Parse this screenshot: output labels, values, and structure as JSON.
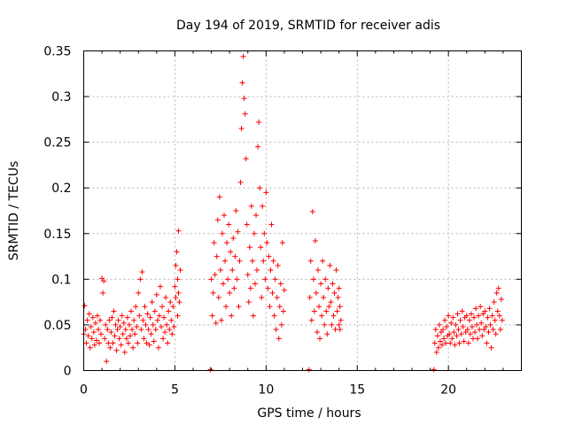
{
  "chart_data": {
    "type": "scatter",
    "title": "Day 194 of 2019, SRMTID for receiver adis",
    "xlabel": "GPS time / hours",
    "ylabel": "SRMTID / TECUs",
    "xlim": [
      0,
      24
    ],
    "ylim": [
      0,
      0.35
    ],
    "x_ticks": [
      0,
      5,
      10,
      15,
      20
    ],
    "x_tick_labels": [
      "0",
      "5",
      "10",
      "15",
      "20"
    ],
    "y_ticks": [
      0,
      0.05,
      0.1,
      0.15,
      0.2,
      0.25,
      0.3,
      0.35
    ],
    "y_tick_labels": [
      "0",
      "0.05",
      "0.1",
      "0.15",
      "0.2",
      "0.25",
      "0.3",
      "0.35"
    ],
    "grid": true,
    "marker": "plus",
    "series": [
      {
        "color": "#ff0000",
        "points": [
          [
            0.0,
            0.04
          ],
          [
            0.05,
            0.071
          ],
          [
            0.1,
            0.045
          ],
          [
            0.15,
            0.03
          ],
          [
            0.2,
            0.055
          ],
          [
            0.25,
            0.038
          ],
          [
            0.3,
            0.062
          ],
          [
            0.35,
            0.025
          ],
          [
            0.4,
            0.048
          ],
          [
            0.45,
            0.035
          ],
          [
            0.5,
            0.058
          ],
          [
            0.55,
            0.042
          ],
          [
            0.6,
            0.028
          ],
          [
            0.65,
            0.052
          ],
          [
            0.7,
            0.033
          ],
          [
            0.75,
            0.06
          ],
          [
            0.8,
            0.045
          ],
          [
            0.85,
            0.03
          ],
          [
            0.9,
            0.055
          ],
          [
            0.95,
            0.04
          ],
          [
            1.0,
            0.101
          ],
          [
            1.05,
            0.085
          ],
          [
            1.1,
            0.098
          ],
          [
            1.15,
            0.035
          ],
          [
            1.2,
            0.05
          ],
          [
            1.25,
            0.01
          ],
          [
            1.3,
            0.045
          ],
          [
            1.35,
            0.03
          ],
          [
            1.4,
            0.055
          ],
          [
            1.45,
            0.025
          ],
          [
            1.5,
            0.042
          ],
          [
            1.55,
            0.058
          ],
          [
            1.6,
            0.03
          ],
          [
            1.65,
            0.065
          ],
          [
            1.7,
            0.038
          ],
          [
            1.75,
            0.05
          ],
          [
            1.8,
            0.022
          ],
          [
            1.85,
            0.045
          ],
          [
            1.9,
            0.055
          ],
          [
            1.95,
            0.035
          ],
          [
            2.0,
            0.048
          ],
          [
            2.05,
            0.028
          ],
          [
            2.1,
            0.06
          ],
          [
            2.15,
            0.04
          ],
          [
            2.2,
            0.052
          ],
          [
            2.25,
            0.02
          ],
          [
            2.3,
            0.045
          ],
          [
            2.35,
            0.035
          ],
          [
            2.4,
            0.058
          ],
          [
            2.45,
            0.03
          ],
          [
            2.5,
            0.05
          ],
          [
            2.55,
            0.038
          ],
          [
            2.6,
            0.065
          ],
          [
            2.65,
            0.045
          ],
          [
            2.7,
            0.025
          ],
          [
            2.75,
            0.055
          ],
          [
            2.8,
            0.04
          ],
          [
            2.85,
            0.07
          ],
          [
            2.9,
            0.048
          ],
          [
            2.95,
            0.03
          ],
          [
            3.0,
            0.085
          ],
          [
            3.05,
            0.06
          ],
          [
            3.1,
            0.1
          ],
          [
            3.15,
            0.045
          ],
          [
            3.2,
            0.108
          ],
          [
            3.25,
            0.055
          ],
          [
            3.3,
            0.035
          ],
          [
            3.35,
            0.07
          ],
          [
            3.4,
            0.05
          ],
          [
            3.45,
            0.03
          ],
          [
            3.5,
            0.062
          ],
          [
            3.55,
            0.045
          ],
          [
            3.6,
            0.028
          ],
          [
            3.65,
            0.058
          ],
          [
            3.7,
            0.04
          ],
          [
            3.75,
            0.075
          ],
          [
            3.8,
            0.05
          ],
          [
            3.85,
            0.032
          ],
          [
            3.9,
            0.065
          ],
          [
            3.95,
            0.045
          ],
          [
            4.0,
            0.083
          ],
          [
            4.05,
            0.055
          ],
          [
            4.1,
            0.025
          ],
          [
            4.15,
            0.06
          ],
          [
            4.2,
            0.092
          ],
          [
            4.25,
            0.048
          ],
          [
            4.3,
            0.07
          ],
          [
            4.35,
            0.035
          ],
          [
            4.4,
            0.058
          ],
          [
            4.45,
            0.042
          ],
          [
            4.5,
            0.08
          ],
          [
            4.55,
            0.05
          ],
          [
            4.6,
            0.03
          ],
          [
            4.65,
            0.065
          ],
          [
            4.7,
            0.045
          ],
          [
            4.75,
            0.075
          ],
          [
            4.8,
            0.055
          ],
          [
            4.85,
            0.04
          ],
          [
            4.9,
            0.07
          ],
          [
            4.95,
            0.048
          ],
          [
            5.0,
            0.092
          ],
          [
            5.05,
            0.115
          ],
          [
            5.1,
            0.13
          ],
          [
            5.15,
            0.1
          ],
          [
            5.2,
            0.153
          ],
          [
            5.25,
            0.075
          ],
          [
            5.3,
            0.11
          ],
          [
            5.15,
            0.06
          ],
          [
            5.05,
            0.08
          ],
          [
            5.2,
            0.085
          ],
          [
            6.95,
            0.001
          ],
          [
            7.0,
            0.1
          ],
          [
            7.05,
            0.06
          ],
          [
            7.1,
            0.085
          ],
          [
            7.15,
            0.14
          ],
          [
            7.2,
            0.105
          ],
          [
            7.25,
            0.052
          ],
          [
            7.3,
            0.125
          ],
          [
            7.35,
            0.165
          ],
          [
            7.4,
            0.08
          ],
          [
            7.45,
            0.19
          ],
          [
            7.5,
            0.11
          ],
          [
            7.55,
            0.055
          ],
          [
            7.6,
            0.15
          ],
          [
            7.65,
            0.095
          ],
          [
            7.7,
            0.17
          ],
          [
            7.75,
            0.12
          ],
          [
            7.8,
            0.07
          ],
          [
            7.85,
            0.14
          ],
          [
            7.9,
            0.1
          ],
          [
            7.95,
            0.16
          ],
          [
            8.0,
            0.085
          ],
          [
            8.05,
            0.13
          ],
          [
            8.1,
            0.06
          ],
          [
            8.15,
            0.11
          ],
          [
            8.2,
            0.145
          ],
          [
            8.25,
            0.09
          ],
          [
            8.3,
            0.125
          ],
          [
            8.35,
            0.175
          ],
          [
            8.4,
            0.1
          ],
          [
            8.45,
            0.152
          ],
          [
            8.5,
            0.07
          ],
          [
            8.55,
            0.12
          ],
          [
            8.6,
            0.206
          ],
          [
            8.65,
            0.265
          ],
          [
            8.7,
            0.315
          ],
          [
            8.75,
            0.344
          ],
          [
            8.8,
            0.298
          ],
          [
            8.85,
            0.281
          ],
          [
            8.9,
            0.232
          ],
          [
            8.95,
            0.16
          ],
          [
            9.0,
            0.105
          ],
          [
            9.05,
            0.075
          ],
          [
            9.1,
            0.135
          ],
          [
            9.15,
            0.09
          ],
          [
            9.2,
            0.18
          ],
          [
            9.25,
            0.12
          ],
          [
            9.3,
            0.06
          ],
          [
            9.35,
            0.15
          ],
          [
            9.4,
            0.095
          ],
          [
            9.45,
            0.17
          ],
          [
            9.5,
            0.11
          ],
          [
            9.55,
            0.245
          ],
          [
            9.6,
            0.272
          ],
          [
            9.65,
            0.2
          ],
          [
            9.7,
            0.135
          ],
          [
            9.75,
            0.08
          ],
          [
            9.8,
            0.18
          ],
          [
            9.85,
            0.12
          ],
          [
            9.9,
            0.15
          ],
          [
            9.95,
            0.1
          ],
          [
            10.0,
            0.195
          ],
          [
            10.05,
            0.14
          ],
          [
            10.1,
            0.09
          ],
          [
            10.15,
            0.125
          ],
          [
            10.2,
            0.07
          ],
          [
            10.25,
            0.11
          ],
          [
            10.3,
            0.16
          ],
          [
            10.35,
            0.085
          ],
          [
            10.4,
            0.12
          ],
          [
            10.45,
            0.06
          ],
          [
            10.5,
            0.1
          ],
          [
            10.55,
            0.045
          ],
          [
            10.6,
            0.08
          ],
          [
            10.65,
            0.115
          ],
          [
            10.7,
            0.035
          ],
          [
            10.75,
            0.07
          ],
          [
            10.8,
            0.095
          ],
          [
            10.85,
            0.05
          ],
          [
            10.9,
            0.14
          ],
          [
            10.95,
            0.065
          ],
          [
            11.0,
            0.088
          ],
          [
            12.35,
            0.001
          ],
          [
            12.4,
            0.08
          ],
          [
            12.45,
            0.12
          ],
          [
            12.5,
            0.055
          ],
          [
            12.55,
            0.174
          ],
          [
            12.6,
            0.1
          ],
          [
            12.65,
            0.065
          ],
          [
            12.7,
            0.142
          ],
          [
            12.75,
            0.085
          ],
          [
            12.8,
            0.042
          ],
          [
            12.85,
            0.11
          ],
          [
            12.9,
            0.07
          ],
          [
            12.95,
            0.035
          ],
          [
            13.0,
            0.095
          ],
          [
            13.05,
            0.06
          ],
          [
            13.1,
            0.12
          ],
          [
            13.15,
            0.08
          ],
          [
            13.2,
            0.05
          ],
          [
            13.25,
            0.1
          ],
          [
            13.3,
            0.065
          ],
          [
            13.35,
            0.04
          ],
          [
            13.4,
            0.09
          ],
          [
            13.45,
            0.07
          ],
          [
            13.5,
            0.115
          ],
          [
            13.55,
            0.075
          ],
          [
            13.6,
            0.05
          ],
          [
            13.65,
            0.095
          ],
          [
            13.7,
            0.06
          ],
          [
            13.75,
            0.085
          ],
          [
            13.8,
            0.045
          ],
          [
            13.85,
            0.11
          ],
          [
            13.9,
            0.065
          ],
          [
            13.95,
            0.08
          ],
          [
            14.0,
            0.05
          ],
          [
            14.05,
            0.07
          ],
          [
            14.1,
            0.055
          ],
          [
            14.0,
            0.09
          ],
          [
            14.05,
            0.045
          ],
          [
            19.2,
            0.001
          ],
          [
            19.25,
            0.03
          ],
          [
            19.3,
            0.045
          ],
          [
            19.35,
            0.02
          ],
          [
            19.4,
            0.038
          ],
          [
            19.45,
            0.025
          ],
          [
            19.5,
            0.05
          ],
          [
            19.55,
            0.032
          ],
          [
            19.6,
            0.042
          ],
          [
            19.65,
            0.028
          ],
          [
            19.7,
            0.045
          ],
          [
            19.75,
            0.035
          ],
          [
            19.8,
            0.055
          ],
          [
            19.85,
            0.03
          ],
          [
            19.9,
            0.048
          ],
          [
            19.95,
            0.038
          ],
          [
            20.0,
            0.06
          ],
          [
            20.05,
            0.04
          ],
          [
            20.1,
            0.03
          ],
          [
            20.15,
            0.052
          ],
          [
            20.2,
            0.035
          ],
          [
            20.25,
            0.058
          ],
          [
            20.3,
            0.042
          ],
          [
            20.35,
            0.028
          ],
          [
            20.4,
            0.05
          ],
          [
            20.45,
            0.038
          ],
          [
            20.5,
            0.062
          ],
          [
            20.55,
            0.045
          ],
          [
            20.6,
            0.03
          ],
          [
            20.65,
            0.055
          ],
          [
            20.7,
            0.04
          ],
          [
            20.75,
            0.065
          ],
          [
            20.8,
            0.048
          ],
          [
            20.85,
            0.032
          ],
          [
            20.9,
            0.058
          ],
          [
            20.95,
            0.042
          ],
          [
            21.0,
            0.06
          ],
          [
            21.05,
            0.045
          ],
          [
            21.1,
            0.03
          ],
          [
            21.15,
            0.055
          ],
          [
            21.2,
            0.04
          ],
          [
            21.25,
            0.062
          ],
          [
            21.3,
            0.048
          ],
          [
            21.35,
            0.035
          ],
          [
            21.4,
            0.058
          ],
          [
            21.45,
            0.042
          ],
          [
            21.5,
            0.068
          ],
          [
            21.55,
            0.05
          ],
          [
            21.6,
            0.035
          ],
          [
            21.65,
            0.06
          ],
          [
            21.7,
            0.045
          ],
          [
            21.75,
            0.07
          ],
          [
            21.8,
            0.052
          ],
          [
            21.85,
            0.038
          ],
          [
            21.9,
            0.062
          ],
          [
            21.95,
            0.045
          ],
          [
            22.0,
            0.065
          ],
          [
            22.05,
            0.048
          ],
          [
            22.1,
            0.03
          ],
          [
            22.15,
            0.058
          ],
          [
            22.2,
            0.042
          ],
          [
            22.25,
            0.068
          ],
          [
            22.3,
            0.05
          ],
          [
            22.35,
            0.025
          ],
          [
            22.4,
            0.06
          ],
          [
            22.45,
            0.045
          ],
          [
            22.5,
            0.075
          ],
          [
            22.55,
            0.055
          ],
          [
            22.6,
            0.04
          ],
          [
            22.65,
            0.085
          ],
          [
            22.7,
            0.065
          ],
          [
            22.75,
            0.09
          ],
          [
            22.8,
            0.06
          ],
          [
            22.85,
            0.045
          ],
          [
            22.9,
            0.078
          ],
          [
            22.95,
            0.055
          ]
        ]
      }
    ]
  }
}
